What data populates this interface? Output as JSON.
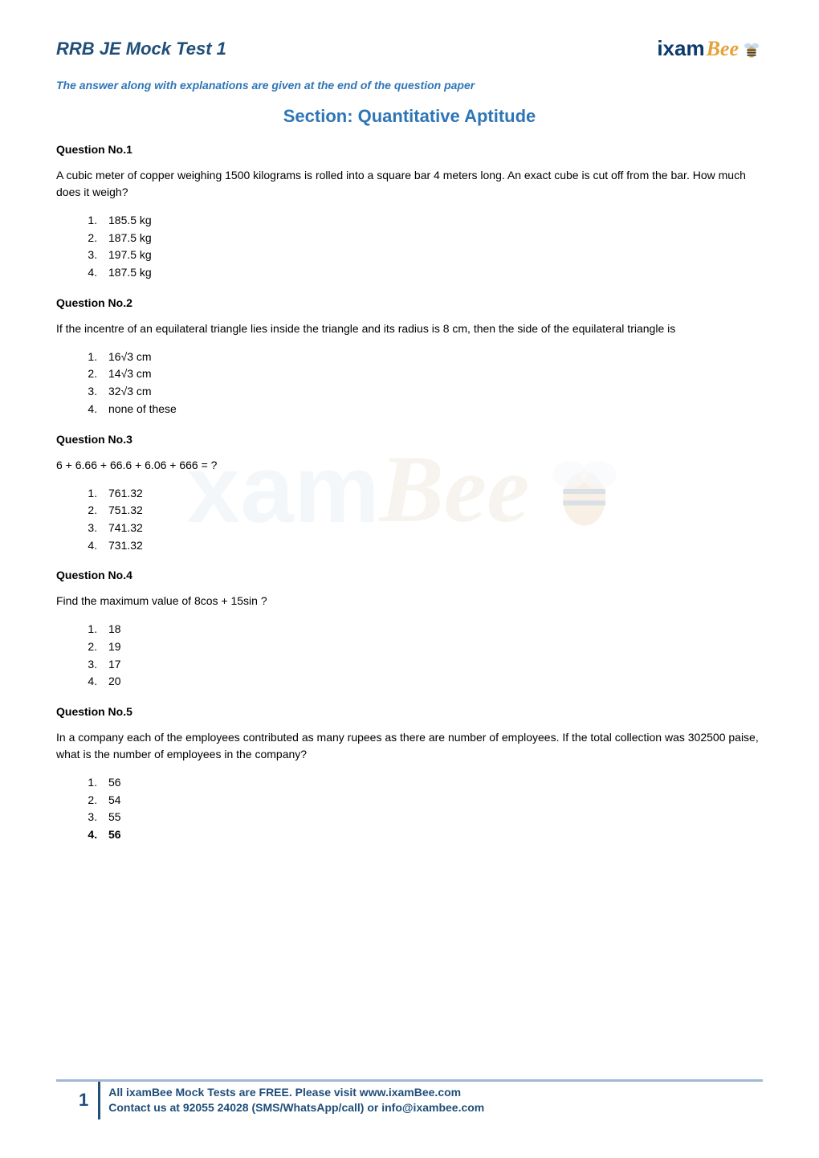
{
  "doc_title": "RRB JE Mock Test 1",
  "logo": {
    "ixam": "ixam",
    "bee": "Bee"
  },
  "answer_note": "The answer along with explanations are given at the end of the question paper",
  "section_title": "Section: Quantitative Aptitude",
  "questions": [
    {
      "heading": "Question No.1",
      "text": "A cubic meter of copper weighing 1500 kilograms is rolled into a square bar 4 meters long. An exact cube is cut off from the bar. How much does it weigh?",
      "options": [
        "185.5 kg",
        "187.5 kg",
        "197.5 kg",
        "187.5 kg"
      ],
      "bold_idx": -1
    },
    {
      "heading": "Question No.2",
      "text": "If the incentre of an equilateral triangle lies inside the triangle and its radius is 8 cm, then the side of the equilateral triangle is",
      "options": [
        "16√3 cm",
        "14√3 cm",
        "32√3 cm",
        "none of these"
      ],
      "bold_idx": -1
    },
    {
      "heading": "Question No.3",
      "text": "6 + 6.66 + 66.6 + 6.06 + 666 = ?",
      "options": [
        "761.32",
        "751.32",
        "741.32",
        "731.32"
      ],
      "bold_idx": -1
    },
    {
      "heading": "Question No.4",
      "text": "Find the maximum value of 8cos   + 15sin   ?",
      "options": [
        "18",
        "19",
        "17",
        "20"
      ],
      "bold_idx": -1
    },
    {
      "heading": "Question No.5",
      "text": "In a company each of the employees contributed as many rupees as there are number of employees. If the total collection was 302500 paise, what is the number of employees in the company?",
      "options": [
        "56",
        "54",
        "55",
        "56"
      ],
      "bold_idx": 3
    }
  ],
  "footer": {
    "page_num": "1",
    "line1": "All ixamBee Mock Tests are FREE. Please visit www.ixamBee.com",
    "line2": "Contact us at 92055 24028 (SMS/WhatsApp/call) or info@ixambee.com"
  },
  "watermark": {
    "a": "xam",
    "b": "Bee"
  },
  "colors": {
    "title": "#1f4e79",
    "note": "#2e75b6",
    "section": "#2e75b6",
    "body": "#000000",
    "footer_border": "#a0b8d8",
    "logo_ixam": "#0b3a6b",
    "logo_bee": "#e5a13a"
  }
}
